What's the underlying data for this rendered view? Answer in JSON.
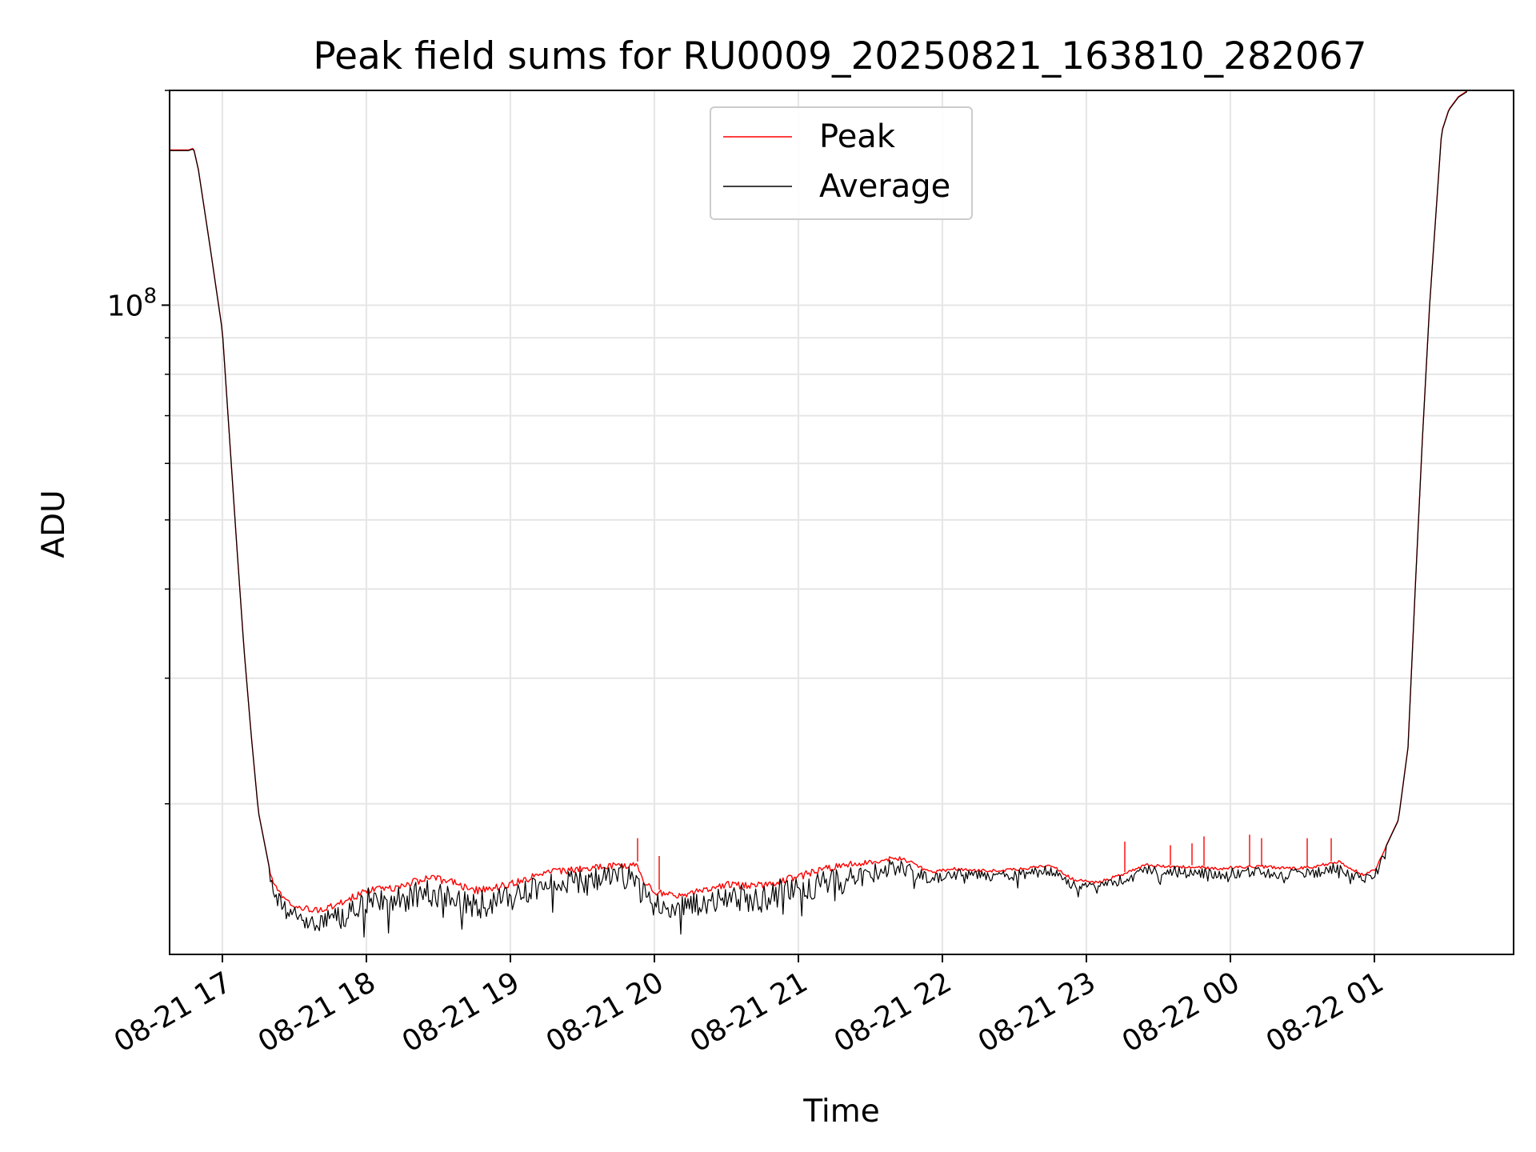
{
  "chart_data": {
    "type": "line",
    "title": "Peak field sums for RU0009_20250821_163810_282067",
    "xlabel": "Time",
    "ylabel": "ADU",
    "y_scale": "log",
    "ylim": [
      12300000,
      200000000
    ],
    "xlim": [
      "2025-08-21 16:38",
      "2025-08-22 01:58"
    ],
    "x_ticks": [
      {
        "label": "08-21 17",
        "x": "2025-08-21 17:00"
      },
      {
        "label": "08-21 18",
        "x": "2025-08-21 18:00"
      },
      {
        "label": "08-21 19",
        "x": "2025-08-21 19:00"
      },
      {
        "label": "08-21 20",
        "x": "2025-08-21 20:00"
      },
      {
        "label": "08-21 21",
        "x": "2025-08-21 21:00"
      },
      {
        "label": "08-21 22",
        "x": "2025-08-21 22:00"
      },
      {
        "label": "08-21 23",
        "x": "2025-08-21 23:00"
      },
      {
        "label": "08-22 00",
        "x": "2025-08-22 00:00"
      },
      {
        "label": "08-22 01",
        "x": "2025-08-22 01:00"
      }
    ],
    "y_major_tick": {
      "base": "10",
      "exp": "8",
      "value": 100000000
    },
    "grid": true,
    "legend_position": "top-center",
    "series": [
      {
        "name": "Peak",
        "color": "#ff0000",
        "points": [
          [
            "2025-08-21 16:38",
            165000000
          ],
          [
            "2025-08-21 16:46",
            165000000
          ],
          [
            "2025-08-21 16:48",
            166000000
          ],
          [
            "2025-08-21 16:50",
            155000000
          ],
          [
            "2025-08-21 16:55",
            120000000
          ],
          [
            "2025-08-21 17:00",
            92000000
          ],
          [
            "2025-08-21 17:03",
            65000000
          ],
          [
            "2025-08-21 17:06",
            46000000
          ],
          [
            "2025-08-21 17:09",
            33000000
          ],
          [
            "2025-08-21 17:12",
            25000000
          ],
          [
            "2025-08-21 17:15",
            19500000
          ],
          [
            "2025-08-21 17:20",
            16000000
          ],
          [
            "2025-08-21 17:25",
            14900000
          ],
          [
            "2025-08-21 17:30",
            14500000
          ],
          [
            "2025-08-21 17:40",
            14300000
          ],
          [
            "2025-08-21 17:50",
            14700000
          ],
          [
            "2025-08-21 18:00",
            15300000
          ],
          [
            "2025-08-21 18:10",
            15400000
          ],
          [
            "2025-08-21 18:15",
            15600000
          ],
          [
            "2025-08-21 18:25",
            15900000
          ],
          [
            "2025-08-21 18:35",
            15800000
          ],
          [
            "2025-08-21 18:45",
            15300000
          ],
          [
            "2025-08-21 18:55",
            15500000
          ],
          [
            "2025-08-21 19:05",
            15800000
          ],
          [
            "2025-08-21 19:15",
            16200000
          ],
          [
            "2025-08-21 19:25",
            16300000
          ],
          [
            "2025-08-21 19:35",
            16500000
          ],
          [
            "2025-08-21 19:45",
            16550000
          ],
          [
            "2025-08-21 19:53",
            16600000
          ],
          [
            "2025-08-21 19:55",
            15800000
          ],
          [
            "2025-08-21 20:00",
            15200000
          ],
          [
            "2025-08-21 20:10",
            15000000
          ],
          [
            "2025-08-21 20:20",
            15300000
          ],
          [
            "2025-08-21 20:30",
            15600000
          ],
          [
            "2025-08-21 20:40",
            15500000
          ],
          [
            "2025-08-21 20:50",
            15700000
          ],
          [
            "2025-08-21 21:00",
            16000000
          ],
          [
            "2025-08-21 21:10",
            16400000
          ],
          [
            "2025-08-21 21:20",
            16600000
          ],
          [
            "2025-08-21 21:30",
            16700000
          ],
          [
            "2025-08-21 21:40",
            16900000
          ],
          [
            "2025-08-21 21:45",
            16800000
          ],
          [
            "2025-08-21 21:55",
            16100000
          ],
          [
            "2025-08-21 22:05",
            16300000
          ],
          [
            "2025-08-21 22:15",
            16200000
          ],
          [
            "2025-08-21 22:25",
            16200000
          ],
          [
            "2025-08-21 22:35",
            16300000
          ],
          [
            "2025-08-21 22:45",
            16500000
          ],
          [
            "2025-08-21 22:55",
            15700000
          ],
          [
            "2025-08-21 23:05",
            15600000
          ],
          [
            "2025-08-21 23:15",
            16000000
          ],
          [
            "2025-08-21 23:25",
            16500000
          ],
          [
            "2025-08-21 23:35",
            16400000
          ],
          [
            "2025-08-21 23:45",
            16400000
          ],
          [
            "2025-08-21 23:55",
            16300000
          ],
          [
            "2025-08-22 00:05",
            16400000
          ],
          [
            "2025-08-22 00:15",
            16400000
          ],
          [
            "2025-08-22 00:25",
            16300000
          ],
          [
            "2025-08-22 00:35",
            16400000
          ],
          [
            "2025-08-22 00:45",
            16700000
          ],
          [
            "2025-08-22 00:55",
            16000000
          ],
          [
            "2025-08-22 01:00",
            16200000
          ],
          [
            "2025-08-22 01:05",
            17500000
          ],
          [
            "2025-08-22 01:10",
            19000000
          ],
          [
            "2025-08-22 01:14",
            24000000
          ],
          [
            "2025-08-22 01:17",
            40000000
          ],
          [
            "2025-08-22 01:20",
            65000000
          ],
          [
            "2025-08-22 01:23",
            100000000
          ],
          [
            "2025-08-22 01:26",
            140000000
          ],
          [
            "2025-08-22 01:28",
            175000000
          ],
          [
            "2025-08-22 01:31",
            188000000
          ],
          [
            "2025-08-22 01:35",
            196000000
          ],
          [
            "2025-08-22 01:39",
            200000000
          ]
        ],
        "spikes": [
          [
            "2025-08-21 19:53",
            17900000
          ],
          [
            "2025-08-21 20:02",
            16900000
          ],
          [
            "2025-08-21 23:16",
            17700000
          ],
          [
            "2025-08-21 23:35",
            17500000
          ],
          [
            "2025-08-21 23:44",
            17600000
          ],
          [
            "2025-08-21 23:49",
            18000000
          ],
          [
            "2025-08-22 00:08",
            18100000
          ],
          [
            "2025-08-22 00:13",
            17900000
          ],
          [
            "2025-08-22 00:32",
            17900000
          ],
          [
            "2025-08-22 00:42",
            17900000
          ]
        ]
      },
      {
        "name": "Average",
        "color": "#000000",
        "noise_band": [
          [
            "2025-08-21 17:20",
            0.06
          ],
          [
            "2025-08-21 18:00",
            0.1
          ],
          [
            "2025-08-21 19:00",
            0.1
          ],
          [
            "2025-08-21 19:55",
            0.08
          ],
          [
            "2025-08-21 21:00",
            0.1
          ],
          [
            "2025-08-21 21:45",
            0.06
          ],
          [
            "2025-08-21 22:00",
            0.04
          ],
          [
            "2025-08-22 01:05",
            0.04
          ]
        ]
      }
    ]
  }
}
